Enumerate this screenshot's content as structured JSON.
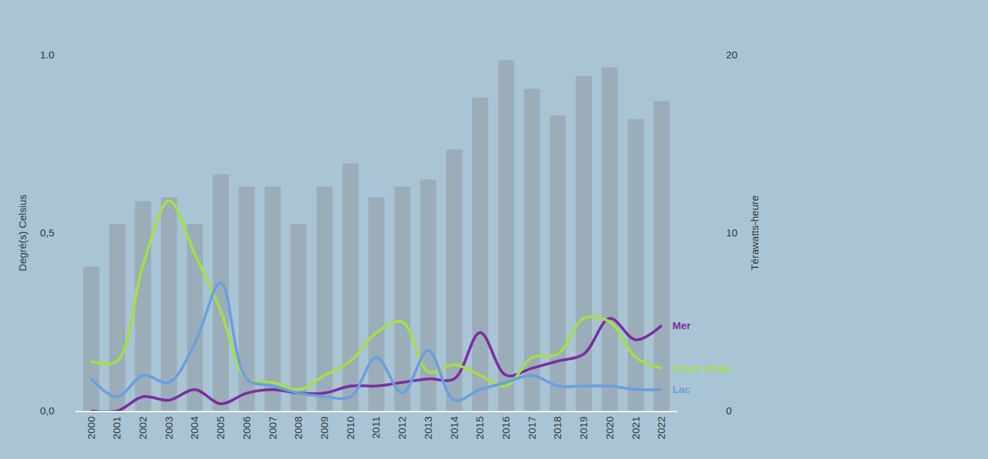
{
  "chart_data": {
    "type": "bar",
    "categories": [
      "2000",
      "2001",
      "2002",
      "2003",
      "2004",
      "2005",
      "2006",
      "2007",
      "2008",
      "2009",
      "2010",
      "2011",
      "2012",
      "2013",
      "2014",
      "2015",
      "2016",
      "2017",
      "2018",
      "2019",
      "2020",
      "2021",
      "2022"
    ],
    "y_label": "Degré(s) Celsius",
    "y2_label": "Térawatts-heure",
    "ylim": [
      0,
      1
    ],
    "yticks": [
      {
        "value": 0,
        "label": "0,0"
      },
      {
        "value": 0.5,
        "label": "0,5"
      },
      {
        "value": 1,
        "label": "1.0"
      }
    ],
    "y2lim": [
      0,
      20
    ],
    "y2ticks": [
      0,
      10,
      20
    ],
    "grid": false,
    "series": [
      {
        "name": "Térawatts-heure",
        "type": "bar",
        "axis": "y2",
        "color": "#8f9aa1",
        "values": [
          8.1,
          10.5,
          11.8,
          12.0,
          10.5,
          13.3,
          12.6,
          12.6,
          10.5,
          12.6,
          13.9,
          12.0,
          12.6,
          13.0,
          14.7,
          17.6,
          19.7,
          18.1,
          16.6,
          18.8,
          19.3,
          16.4,
          17.4
        ]
      },
      {
        "name": "Mer",
        "type": "line",
        "color": "#7b2fa0",
        "values": [
          0.0,
          0.0,
          0.04,
          0.03,
          0.06,
          0.02,
          0.05,
          0.06,
          0.05,
          0.05,
          0.07,
          0.07,
          0.08,
          0.09,
          0.09,
          0.22,
          0.1,
          0.12,
          0.14,
          0.16,
          0.26,
          0.2,
          0.24
        ]
      },
      {
        "name": "Cours d'eau",
        "type": "line",
        "color": "#a3e048",
        "values": [
          0.14,
          0.14,
          0.41,
          0.59,
          0.44,
          0.28,
          0.09,
          0.08,
          0.06,
          0.1,
          0.14,
          0.22,
          0.25,
          0.11,
          0.13,
          0.1,
          0.07,
          0.15,
          0.16,
          0.26,
          0.25,
          0.15,
          0.12
        ]
      },
      {
        "name": "Lac",
        "type": "line",
        "color": "#6a9fe0",
        "values": [
          0.09,
          0.04,
          0.1,
          0.08,
          0.19,
          0.36,
          0.09,
          0.07,
          0.05,
          0.04,
          0.04,
          0.15,
          0.05,
          0.17,
          0.03,
          0.06,
          0.08,
          0.1,
          0.07,
          0.07,
          0.07,
          0.06,
          0.06
        ]
      }
    ]
  }
}
